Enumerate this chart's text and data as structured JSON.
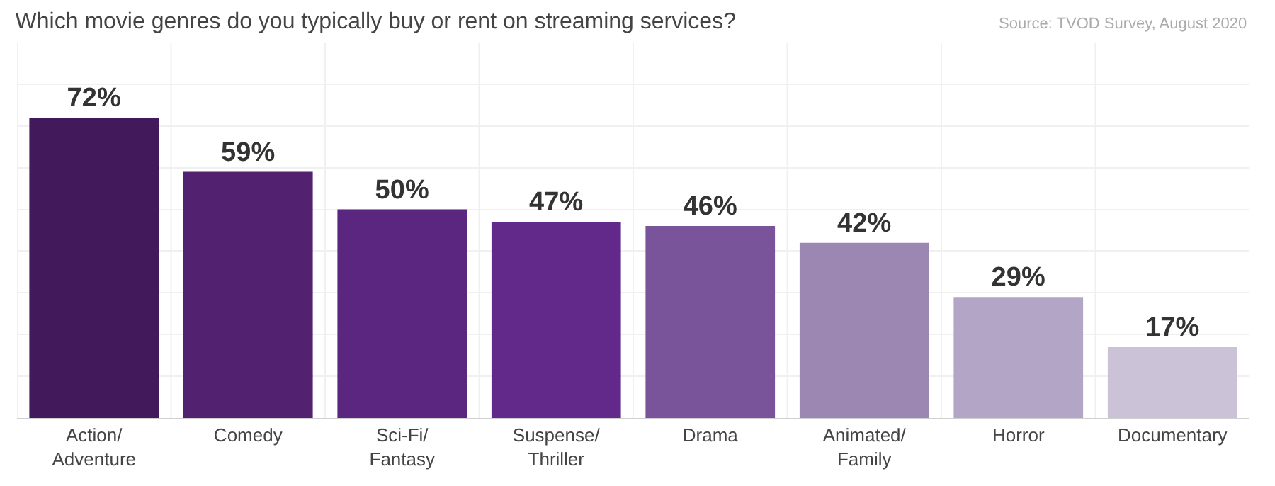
{
  "chart_data": {
    "type": "bar",
    "title": "Which movie genres do you typically buy or rent on streaming services?",
    "annotations": [
      "Source: TVOD Survey, August 2020"
    ],
    "categories": [
      "Action/\nAdventure",
      "Comedy",
      "Sci-Fi/\nFantasy",
      "Suspense/\nThriller",
      "Drama",
      "Animated/\nFamily",
      "Horror",
      "Documentary"
    ],
    "values": [
      72,
      59,
      50,
      47,
      46,
      42,
      29,
      17
    ],
    "value_labels": [
      "72%",
      "59%",
      "50%",
      "47%",
      "46%",
      "42%",
      "29%",
      "17%"
    ],
    "colors": [
      "#421a5c",
      "#52216f",
      "#5a2680",
      "#62298a",
      "#79549a",
      "#9b87b2",
      "#b3a5c5",
      "#cbc2d8"
    ],
    "ylim": [
      0,
      90
    ],
    "grid": true,
    "tick_labels": "x"
  }
}
